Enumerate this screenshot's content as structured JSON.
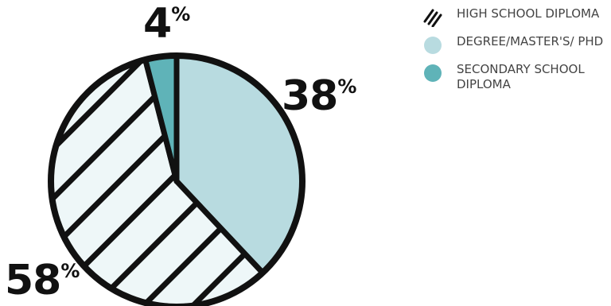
{
  "chart_data": {
    "type": "pie",
    "slices": [
      {
        "label": "DEGREE/MASTER'S/ PHD",
        "value": 38,
        "display": "38",
        "color": "#b8dbe0",
        "pattern": "solid"
      },
      {
        "label": "HIGH SCHOOL DIPLOMA",
        "value": 58,
        "display": "58",
        "color": "#eef7f8",
        "pattern": "hatch"
      },
      {
        "label": "SECONDARY SCHOOL DIPLOMA",
        "value": 4,
        "display": "4",
        "color": "#5fb3b8",
        "pattern": "solid"
      }
    ],
    "percent_symbol": "%",
    "legend": {
      "placement": "top-right",
      "items": [
        {
          "label": "HIGH SCHOOL DIPLOMA",
          "icon": "hatch-icon"
        },
        {
          "label": "DEGREE/MASTER'S/ PHD",
          "color": "#b8dbe0",
          "icon": "circle-icon"
        },
        {
          "label": "SECONDARY SCHOOL DIPLOMA",
          "color": "#5fb3b8",
          "icon": "circle-icon"
        }
      ]
    },
    "colors": {
      "outline": "#111111",
      "hatch_line": "#111111",
      "text": "#111111",
      "legend_text": "#444444"
    }
  }
}
